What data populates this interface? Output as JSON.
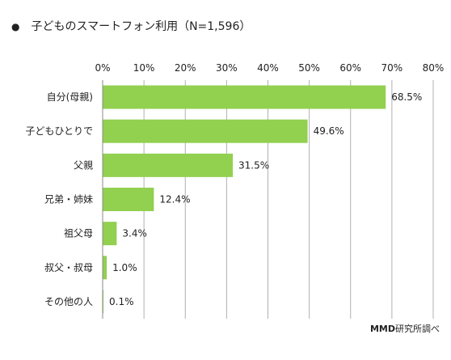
{
  "title": "子どものスマートフォン利用（N=1,596）",
  "bullet": "●",
  "source": {
    "brand": "MMD",
    "rest": "研究所調べ"
  },
  "chart_data": {
    "type": "bar",
    "orientation": "horizontal",
    "title": "子どものスマートフォン利用（N=1,596）",
    "categories": [
      "自分(母親)",
      "子どもひとりで",
      "父親",
      "兄弟・姉妹",
      "祖父母",
      "叔父・叔母",
      "その他の人"
    ],
    "values": [
      68.5,
      49.6,
      31.5,
      12.4,
      3.4,
      1.0,
      0.1
    ],
    "value_labels": [
      "68.5%",
      "49.6%",
      "31.5%",
      "12.4%",
      "3.4%",
      "1.0%",
      "0.1%"
    ],
    "ticks": [
      0,
      10,
      20,
      30,
      40,
      50,
      60,
      70,
      80
    ],
    "tick_labels": [
      "0%",
      "10%",
      "20%",
      "30%",
      "40%",
      "50%",
      "60%",
      "70%",
      "80%"
    ],
    "xlim": [
      0,
      80
    ],
    "grid": true,
    "bar_color": "#92d050",
    "grid_color": "#b0b0b0"
  }
}
